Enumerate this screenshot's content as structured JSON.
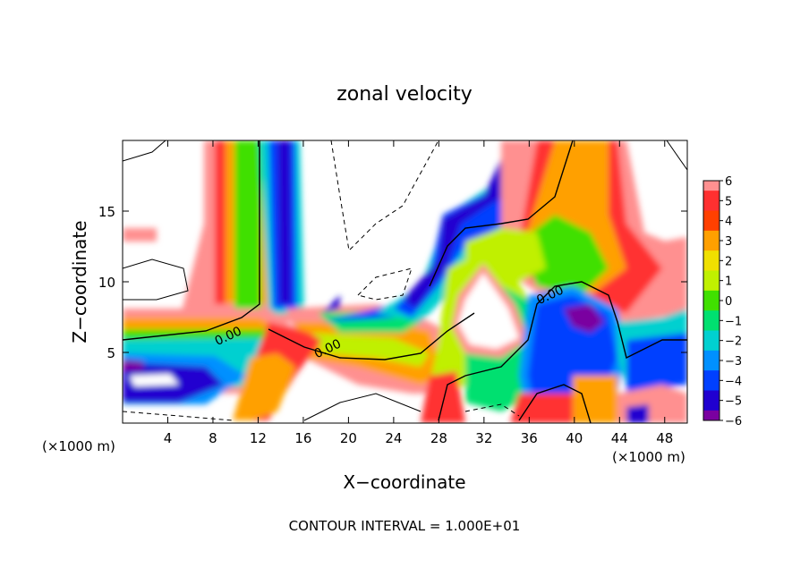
{
  "chart_data": {
    "type": "heatmap",
    "title": "zonal velocity",
    "xlabel": "X−coordinate",
    "ylabel": "Z−coordinate",
    "x_unit_left": "(×1000 m)",
    "x_unit_right": "(×1000 m)",
    "xlim": [
      0,
      50
    ],
    "ylim": [
      0,
      20
    ],
    "xticks": [
      4,
      8,
      12,
      16,
      20,
      24,
      28,
      32,
      36,
      40,
      44,
      48
    ],
    "yticks": [
      5,
      10,
      15
    ],
    "colorbar": {
      "min": -6,
      "max": 6,
      "labels": [
        "6",
        "5",
        "4",
        "3",
        "2",
        "1",
        "0",
        "−1",
        "−2",
        "−3",
        "−4",
        "−5",
        "−6"
      ]
    },
    "contour_labels": [
      {
        "text": "0.00",
        "x": 9.5,
        "z": 5.9
      },
      {
        "text": "0.00",
        "x": 18.3,
        "z": 5.0
      },
      {
        "text": "0.00",
        "x": 38.0,
        "z": 8.8
      }
    ],
    "footer": "CONTOUR INTERVAL = 1.000E+01"
  },
  "colors": {
    "scale": [
      "#7a00a0",
      "#2000d0",
      "#0040ff",
      "#0090ff",
      "#00d0d0",
      "#00e070",
      "#40e000",
      "#c0f000",
      "#f0e000",
      "#ffa000",
      "#ff4000",
      "#ff3030",
      "#ff9090"
    ]
  }
}
